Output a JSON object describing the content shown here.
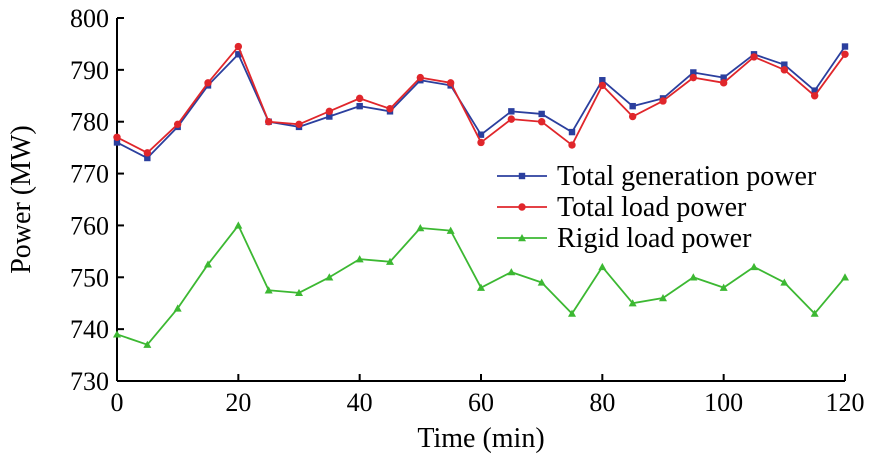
{
  "chart_data": {
    "type": "line",
    "xlabel": "Time (min)",
    "ylabel": "Power (MW)",
    "xlim": [
      0,
      120
    ],
    "ylim": [
      730,
      800
    ],
    "xticks": [
      0,
      20,
      40,
      60,
      80,
      100,
      120
    ],
    "yticks": [
      730,
      740,
      750,
      760,
      770,
      780,
      790,
      800
    ],
    "grid": false,
    "legend_position": "right",
    "x": [
      0,
      5,
      10,
      15,
      20,
      25,
      30,
      35,
      40,
      45,
      50,
      55,
      60,
      65,
      70,
      75,
      80,
      85,
      90,
      95,
      100,
      105,
      110,
      115,
      120
    ],
    "series": [
      {
        "name": "Total generation power",
        "color": "#2b3f9e",
        "marker": "square",
        "values": [
          776,
          773,
          779,
          787,
          793,
          780,
          779,
          781,
          783,
          782,
          788,
          787,
          777.5,
          782,
          781.5,
          778,
          788,
          783,
          784.5,
          789.5,
          788.5,
          793,
          791,
          786,
          794.5
        ]
      },
      {
        "name": "Total load power",
        "color": "#e0262b",
        "marker": "circle",
        "values": [
          777,
          774,
          779.5,
          787.5,
          794.5,
          780,
          779.5,
          782,
          784.5,
          782.5,
          788.5,
          787.5,
          776,
          780.5,
          780,
          775.5,
          787,
          781,
          784,
          788.5,
          787.5,
          792.5,
          790,
          785,
          793
        ]
      },
      {
        "name": "Rigid load power",
        "color": "#3cb832",
        "marker": "triangle",
        "values": [
          739,
          737,
          744,
          752.5,
          760,
          747.5,
          747,
          750,
          753.5,
          753,
          759.5,
          759,
          748,
          751,
          749,
          743,
          752,
          745,
          746,
          750,
          748,
          752,
          749,
          743,
          750
        ]
      }
    ]
  }
}
